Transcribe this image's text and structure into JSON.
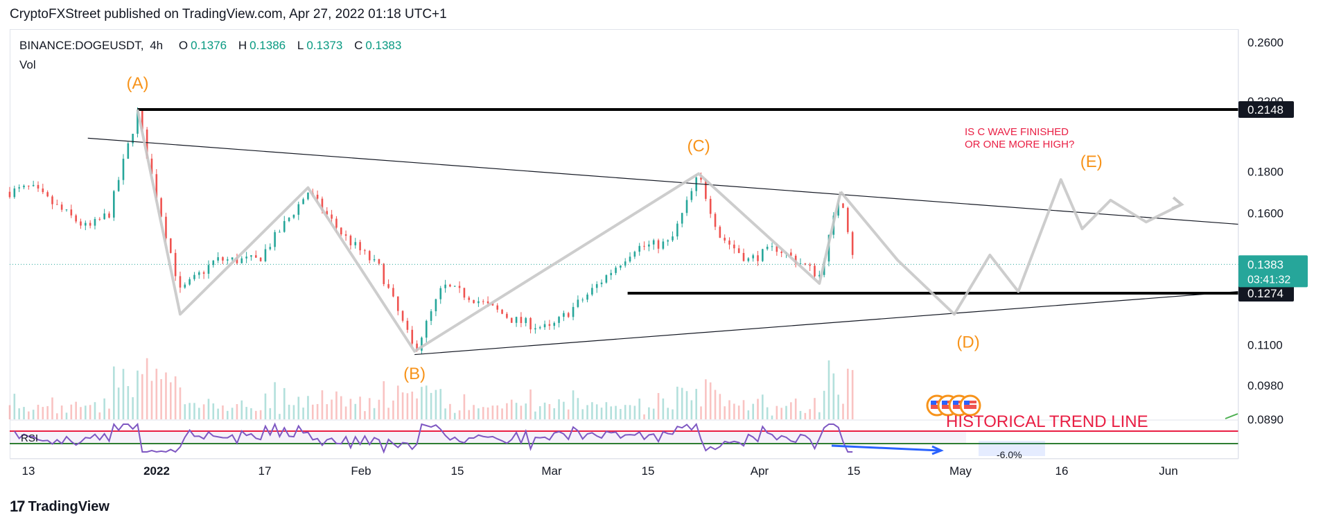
{
  "header": {
    "publisher": "CryptoFXStreet published on TradingView.com, Apr 27, 2022 01:18 UTC+1"
  },
  "legend": {
    "symbol": "BINANCE:DOGEUSDT,",
    "interval": "4h",
    "open_label": "O",
    "open": "0.1376",
    "high_label": "H",
    "high": "0.1386",
    "low_label": "L",
    "low": "0.1373",
    "close_label": "C",
    "close": "0.1383",
    "vol": "Vol"
  },
  "price_axis": {
    "labels": [
      {
        "value": 0.26,
        "text": "0.2600"
      },
      {
        "value": 0.22,
        "text": "0.2200"
      },
      {
        "value": 0.18,
        "text": "0.1800"
      },
      {
        "value": 0.16,
        "text": "0.1600"
      },
      {
        "value": 0.11,
        "text": "0.1100"
      },
      {
        "value": 0.098,
        "text": "0.0980"
      },
      {
        "value": 0.089,
        "text": "0.0890"
      }
    ],
    "badges": [
      {
        "value": 0.2148,
        "text": "0.2148",
        "color": "#131722"
      },
      {
        "value": 0.1274,
        "text": "0.1274",
        "color": "#131722"
      }
    ],
    "last_price": {
      "value": 0.1383,
      "text": "0.1383",
      "countdown": "03:41:32",
      "color": "#26a69a"
    }
  },
  "time_axis": {
    "labels": [
      {
        "text": "13",
        "bold": false
      },
      {
        "text": "2022",
        "bold": true
      },
      {
        "text": "17",
        "bold": false
      },
      {
        "text": "Feb",
        "bold": false
      },
      {
        "text": "15",
        "bold": false
      },
      {
        "text": "Mar",
        "bold": false
      },
      {
        "text": "15",
        "bold": false
      },
      {
        "text": "Apr",
        "bold": false
      },
      {
        "text": "15",
        "bold": false
      },
      {
        "text": "May",
        "bold": false
      },
      {
        "text": "16",
        "bold": false
      },
      {
        "text": "Jun",
        "bold": false
      }
    ]
  },
  "annotations": {
    "waves": [
      "(A)",
      "(B)",
      "(C)",
      "(D)",
      "(E)"
    ],
    "note_line1": "IS C WAVE FINISHED",
    "note_line2": "OR ONE MORE HIGH?",
    "trend_text": "HISTORICAL TREND LINE",
    "percent_text": "-6.0%"
  },
  "rsi": {
    "label": "RSI"
  },
  "colors": {
    "wave_label": "#f7931a",
    "note": "#e91e43",
    "up": "#26a69a",
    "down": "#ef5350",
    "rsi": "#7e57c2",
    "level_line": "#000000",
    "path": "#c8c8c8"
  },
  "footer": {
    "brand": "TradingView"
  },
  "chart_data": {
    "type": "candlestick",
    "symbol": "BINANCE:DOGEUSDT",
    "interval": "4h",
    "x_range": [
      "2021-12-29",
      "2022-06-20"
    ],
    "ylim": [
      0.089,
      0.27
    ],
    "y_scale": "log",
    "anchors": [
      {
        "date": "2021-12-29",
        "price": 0.17
      },
      {
        "date": "2022-01-01",
        "price": 0.172
      },
      {
        "date": "2022-01-05",
        "price": 0.162
      },
      {
        "date": "2022-01-09",
        "price": 0.153
      },
      {
        "date": "2022-01-12",
        "price": 0.16
      },
      {
        "date": "2022-01-16",
        "price": 0.213
      },
      {
        "date": "2022-01-18",
        "price": 0.178
      },
      {
        "date": "2022-01-22",
        "price": 0.128
      },
      {
        "date": "2022-01-27",
        "price": 0.14
      },
      {
        "date": "2022-02-02",
        "price": 0.14
      },
      {
        "date": "2022-02-09",
        "price": 0.17
      },
      {
        "date": "2022-02-14",
        "price": 0.15
      },
      {
        "date": "2022-02-19",
        "price": 0.137
      },
      {
        "date": "2022-02-24",
        "price": 0.108
      },
      {
        "date": "2022-02-28",
        "price": 0.13
      },
      {
        "date": "2022-03-04",
        "price": 0.126
      },
      {
        "date": "2022-03-10",
        "price": 0.118
      },
      {
        "date": "2022-03-15",
        "price": 0.115
      },
      {
        "date": "2022-03-20",
        "price": 0.126
      },
      {
        "date": "2022-03-27",
        "price": 0.145
      },
      {
        "date": "2022-04-01",
        "price": 0.147
      },
      {
        "date": "2022-04-05",
        "price": 0.178
      },
      {
        "date": "2022-04-08",
        "price": 0.15
      },
      {
        "date": "2022-04-12",
        "price": 0.14
      },
      {
        "date": "2022-04-16",
        "price": 0.145
      },
      {
        "date": "2022-04-22",
        "price": 0.134
      },
      {
        "date": "2022-04-25",
        "price": 0.17
      },
      {
        "date": "2022-04-27",
        "price": 0.1383
      }
    ],
    "levels": [
      0.2148,
      0.1274
    ],
    "upper_trendline": [
      {
        "date": "2022-01-09",
        "price": 0.198
      },
      {
        "date": "2022-06-20",
        "price": 0.155
      }
    ],
    "lower_trendline": [
      {
        "date": "2022-02-24",
        "price": 0.107
      },
      {
        "date": "2022-06-20",
        "price": 0.128
      }
    ],
    "wave_points": [
      {
        "label": "(A)",
        "date": "2022-01-16",
        "price": 0.2148
      },
      {
        "label": "(B)",
        "date": "2022-02-24",
        "price": 0.108
      },
      {
        "label": "(C)",
        "date": "2022-04-05",
        "price": 0.179
      },
      {
        "label": "(D)",
        "date": "2022-05-11",
        "price": 0.12
      },
      {
        "label": "(E)",
        "date": "2022-05-26",
        "price": 0.176
      }
    ],
    "projection_path": [
      {
        "date": "2022-04-25",
        "price": 0.17
      },
      {
        "date": "2022-05-03",
        "price": 0.14
      },
      {
        "date": "2022-05-11",
        "price": 0.12
      },
      {
        "date": "2022-05-16",
        "price": 0.142
      },
      {
        "date": "2022-05-20",
        "price": 0.128
      },
      {
        "date": "2022-05-26",
        "price": 0.176
      },
      {
        "date": "2022-05-29",
        "price": 0.153
      },
      {
        "date": "2022-06-02",
        "price": 0.166
      },
      {
        "date": "2022-06-07",
        "price": 0.156
      },
      {
        "date": "2022-06-12",
        "price": 0.164
      }
    ]
  }
}
